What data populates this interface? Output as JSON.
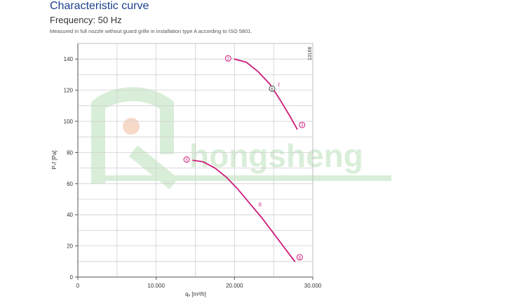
{
  "header": {
    "title": "Characteristic curve",
    "frequency": "Frequency: 50 Hz",
    "note": "Measured in full nozzle without guard grille in installation type A according to ISO 5801."
  },
  "watermark": {
    "text": "hongsheng",
    "logo": "R-letter-logo",
    "color": "#d9eed9"
  },
  "chart_data": {
    "type": "line",
    "title": "",
    "xlabel": "qᵥ [m³/h]",
    "ylabel": "Pₛf [Pa]",
    "xlim": [
      0,
      30000
    ],
    "ylim": [
      0,
      150
    ],
    "x_ticks": [
      0,
      10000,
      20000,
      30000
    ],
    "x_tick_labels": [
      "0",
      "10.000",
      "20.000",
      "30.000"
    ],
    "y_ticks": [
      0,
      20,
      40,
      60,
      80,
      100,
      120,
      140
    ],
    "y_tick_labels": [
      "0",
      "20",
      "40",
      "60",
      "80",
      "100",
      "120",
      "140"
    ],
    "grid": true,
    "code": "13166",
    "color": "#cc1a7a",
    "series": [
      {
        "name": "I",
        "points": [
          [
            20000,
            140
          ],
          [
            21500,
            138
          ],
          [
            23000,
            132
          ],
          [
            24500,
            124
          ],
          [
            25800,
            114
          ],
          [
            27000,
            104
          ],
          [
            28000,
            95
          ]
        ],
        "start_marker": "2",
        "end_marker": "3",
        "operating_point": {
          "label": "6",
          "x": 24800,
          "y": 121
        }
      },
      {
        "name": "II",
        "points": [
          [
            14700,
            75
          ],
          [
            16000,
            74
          ],
          [
            17500,
            70
          ],
          [
            19000,
            64
          ],
          [
            20500,
            56
          ],
          [
            22000,
            47
          ],
          [
            23500,
            38
          ],
          [
            25000,
            28
          ],
          [
            26500,
            18
          ],
          [
            27700,
            10
          ]
        ],
        "start_marker": "5",
        "end_marker": "6"
      }
    ]
  }
}
